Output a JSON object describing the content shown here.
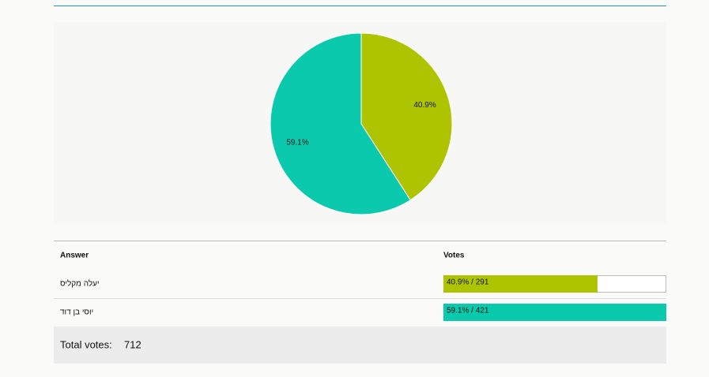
{
  "chart_data": {
    "type": "pie",
    "values": [
      40.9,
      59.1
    ],
    "value_labels": [
      "40.9%",
      "59.1%"
    ],
    "colors": [
      "#afc400",
      "#0ac9ad"
    ]
  },
  "table": {
    "headers": [
      "Answer",
      "Votes"
    ],
    "rows": [
      {
        "answer": "יעלה מקליס",
        "votes": 291,
        "label": "40.9% / 291"
      },
      {
        "answer": "יוסי בן דוד",
        "votes": 421,
        "label": "59.1% / 421"
      }
    ],
    "total_label": "Total votes:",
    "total": 712
  }
}
